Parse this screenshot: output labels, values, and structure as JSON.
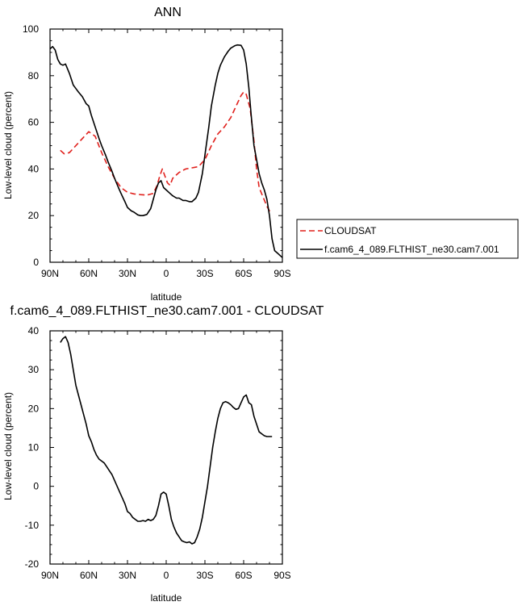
{
  "chart_data": [
    {
      "type": "line",
      "title": "ANN",
      "xlabel": "latitude",
      "ylabel": "Low-level cloud (percent)",
      "xlim": [
        -90,
        90
      ],
      "ylim": [
        0,
        100
      ],
      "x_ticks": [
        -90,
        -60,
        -30,
        0,
        30,
        60,
        90
      ],
      "x_tick_labels": [
        "90N",
        "60N",
        "30N",
        "0",
        "30S",
        "60S",
        "90S"
      ],
      "y_ticks": [
        0,
        20,
        40,
        60,
        80,
        100
      ],
      "y_tick_labels": [
        "0",
        "20",
        "40",
        "60",
        "80",
        "100"
      ],
      "legend_position": "right",
      "series": [
        {
          "name": "CLOUDSAT",
          "color": "#e0201c",
          "dash": "dashed",
          "x": [
            -82,
            -79,
            -75,
            -70,
            -65,
            -60,
            -55,
            -50,
            -45,
            -40,
            -35,
            -30,
            -25,
            -20,
            -15,
            -10,
            -7,
            -5,
            -3,
            -1,
            1,
            3,
            5,
            10,
            15,
            20,
            25,
            30,
            35,
            40,
            45,
            50,
            55,
            58,
            60,
            62,
            65,
            68,
            70,
            72,
            75,
            78,
            80,
            81
          ],
          "y": [
            48,
            46.5,
            47,
            50,
            53,
            56,
            54,
            47,
            41,
            36,
            32,
            30,
            29.3,
            29,
            28.8,
            29.5,
            33,
            37,
            40,
            37,
            34,
            33,
            36,
            38.5,
            40,
            40.5,
            41,
            44,
            50,
            55,
            58,
            62,
            68,
            71.5,
            73,
            72,
            66,
            52,
            40,
            32,
            28,
            24,
            22,
            21
          ]
        },
        {
          "name": "f.cam6_4_089.FLTHIST_ne30.cam7.001",
          "color": "#000000",
          "dash": "solid",
          "x": [
            -90,
            -88,
            -86,
            -84,
            -82,
            -80,
            -78,
            -75,
            -72,
            -70,
            -68,
            -65,
            -62,
            -60,
            -58,
            -55,
            -52,
            -50,
            -47,
            -45,
            -42,
            -40,
            -37,
            -35,
            -32,
            -30,
            -27,
            -25,
            -22,
            -20,
            -18,
            -15,
            -12,
            -10,
            -8,
            -6,
            -4,
            -2,
            0,
            2,
            5,
            8,
            10,
            13,
            15,
            18,
            20,
            23,
            25,
            28,
            30,
            33,
            35,
            38,
            40,
            42,
            45,
            48,
            50,
            53,
            55,
            58,
            60,
            62,
            64,
            66,
            68,
            70,
            72,
            74,
            76,
            78,
            80,
            82,
            84,
            86,
            88,
            90
          ],
          "y": [
            91.5,
            92.5,
            91,
            87,
            85,
            84.5,
            85,
            81,
            76,
            74.5,
            73,
            71,
            68,
            67,
            63,
            58,
            53,
            50,
            46,
            43,
            39,
            36,
            32,
            29.5,
            26,
            23.5,
            22,
            21.5,
            20.3,
            20,
            20,
            20.5,
            23,
            27,
            31,
            34,
            35,
            32,
            31,
            30,
            28.5,
            27.5,
            27.5,
            26.5,
            26.5,
            26,
            26,
            27.5,
            30,
            38,
            46,
            58,
            67,
            76,
            81,
            84.5,
            88,
            90.5,
            91.8,
            92.8,
            93.2,
            93,
            91,
            85,
            75,
            62,
            50,
            44,
            38,
            34,
            31,
            27,
            20,
            10,
            5,
            4,
            3,
            2
          ]
        }
      ]
    },
    {
      "type": "line",
      "title": "f.cam6_4_089.FLTHIST_ne30.cam7.001 - CLOUDSAT",
      "xlabel": "latitude",
      "ylabel": "Low-level cloud (percent)",
      "xlim": [
        -90,
        90
      ],
      "ylim": [
        -20,
        40
      ],
      "x_ticks": [
        -90,
        -60,
        -30,
        0,
        30,
        60,
        90
      ],
      "x_tick_labels": [
        "90N",
        "60N",
        "30N",
        "0",
        "30S",
        "60S",
        "90S"
      ],
      "y_ticks": [
        -20,
        -10,
        0,
        10,
        20,
        30,
        40
      ],
      "y_tick_labels": [
        "-20",
        "-10",
        "0",
        "10",
        "20",
        "30",
        "40"
      ],
      "series": [
        {
          "color": "#000000",
          "dash": "solid",
          "x": [
            -82,
            -80,
            -78,
            -76,
            -74,
            -72,
            -70,
            -68,
            -66,
            -64,
            -62,
            -60,
            -58,
            -56,
            -54,
            -52,
            -50,
            -48,
            -46,
            -44,
            -42,
            -40,
            -38,
            -36,
            -34,
            -32,
            -30,
            -28,
            -26,
            -24,
            -22,
            -20,
            -18,
            -16,
            -14,
            -12,
            -10,
            -8,
            -6,
            -4,
            -2,
            0,
            2,
            4,
            6,
            8,
            10,
            12,
            14,
            16,
            18,
            20,
            22,
            24,
            26,
            28,
            30,
            32,
            34,
            36,
            38,
            40,
            42,
            44,
            46,
            48,
            50,
            52,
            54,
            56,
            58,
            60,
            62,
            64,
            66,
            68,
            70,
            72,
            74,
            76,
            78,
            80,
            82
          ],
          "y": [
            37,
            38,
            38.5,
            37,
            34,
            30,
            26,
            23.5,
            21,
            18.5,
            16,
            13,
            11.5,
            9.5,
            8,
            7,
            6.5,
            6,
            5,
            4,
            3,
            1.5,
            0,
            -1.5,
            -3,
            -4.5,
            -6.5,
            -7,
            -8,
            -8.5,
            -9,
            -9,
            -8.8,
            -9,
            -8.5,
            -8.8,
            -8.5,
            -7.5,
            -5,
            -2,
            -1.5,
            -2,
            -5,
            -8.5,
            -10.5,
            -12,
            -13,
            -14,
            -14.3,
            -14.5,
            -14.3,
            -14.8,
            -14.5,
            -13,
            -11,
            -8,
            -4,
            0,
            5,
            10,
            14,
            17.5,
            20,
            21.5,
            21.8,
            21.5,
            21,
            20.3,
            19.8,
            20,
            21.5,
            23,
            23.5,
            21.5,
            21,
            18,
            16,
            14,
            13.5,
            13,
            12.8,
            12.8,
            12.8
          ]
        }
      ]
    }
  ]
}
